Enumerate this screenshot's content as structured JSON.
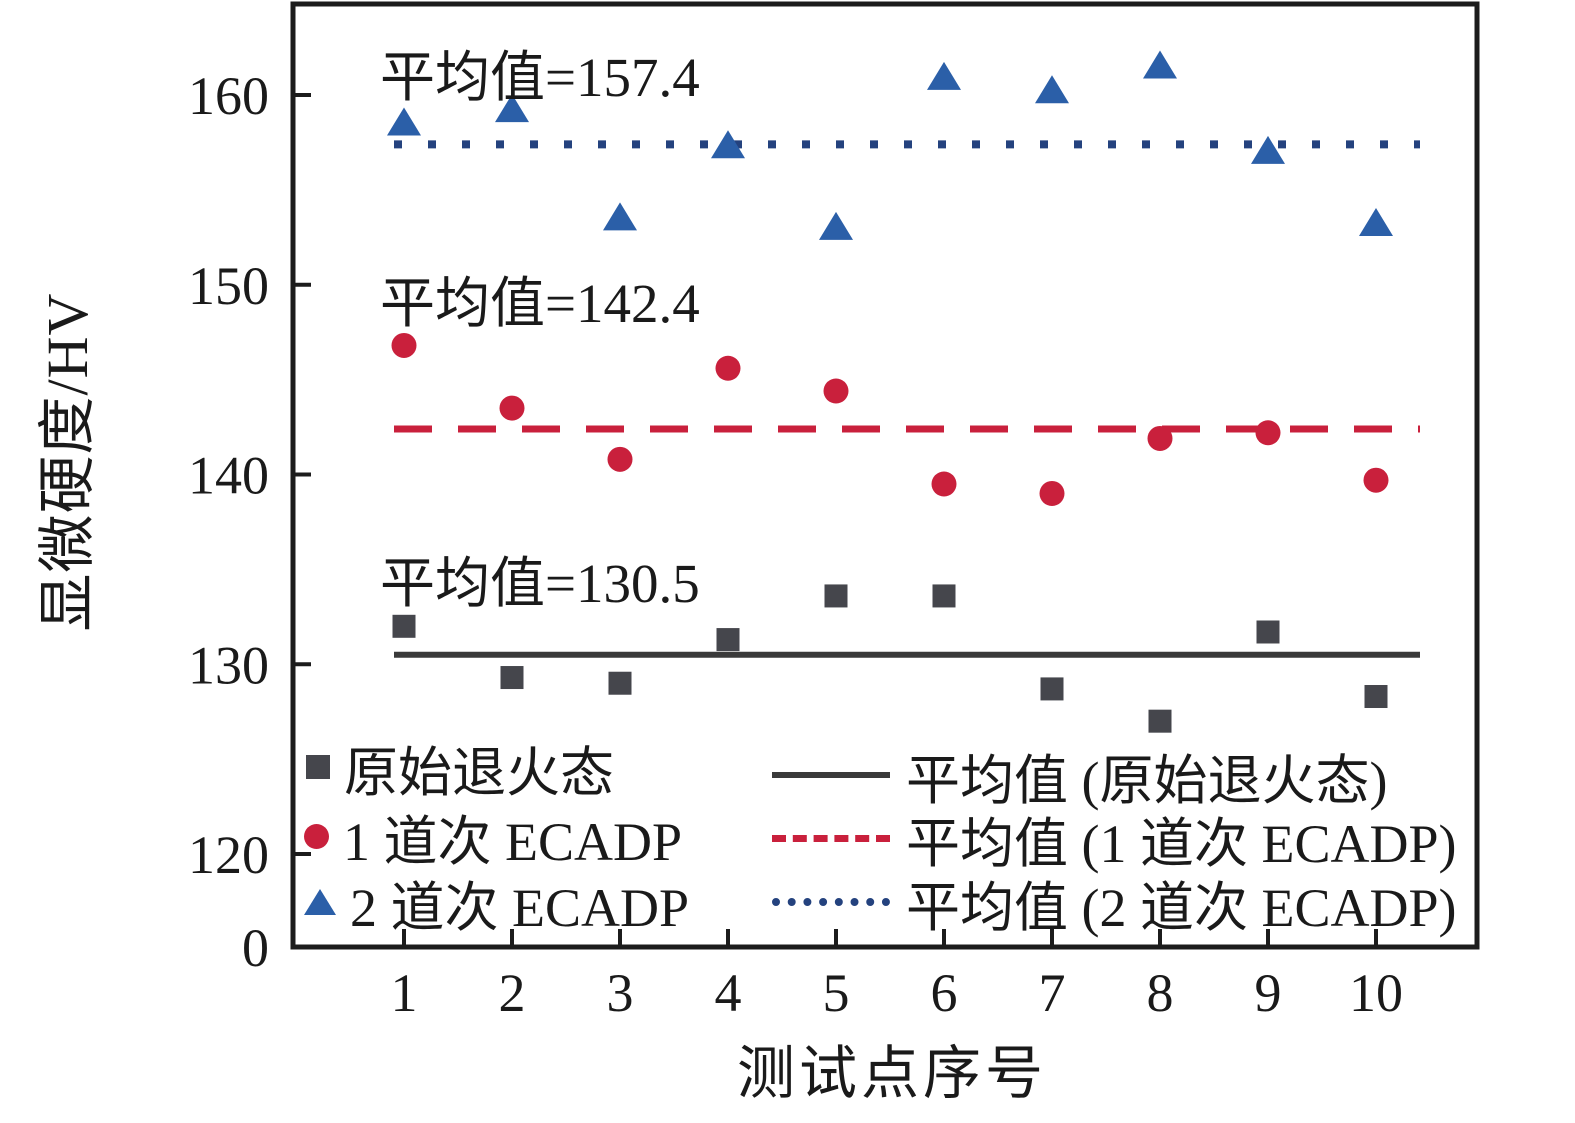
{
  "figure": {
    "background": "#ffffff",
    "axis_color": "#1c1c1c",
    "text_color": "#1a1a1a"
  },
  "axes": {
    "x_label": "测试点序号",
    "y_label": "显微硬度/HV",
    "x_ticks": [
      "1",
      "2",
      "3",
      "4",
      "5",
      "6",
      "7",
      "8",
      "9",
      "10"
    ],
    "y_ticks": [
      {
        "value": 0,
        "label": "0"
      },
      {
        "value": 120,
        "label": "120"
      },
      {
        "value": 130,
        "label": "130"
      },
      {
        "value": 140,
        "label": "140"
      },
      {
        "value": 150,
        "label": "150"
      },
      {
        "value": 160,
        "label": "160"
      }
    ]
  },
  "annotations": [
    {
      "text": "平均值=157.4"
    },
    {
      "text": "平均值=142.4"
    },
    {
      "text": "平均值=130.5"
    }
  ],
  "legend": {
    "markers": [
      {
        "label": "原始退火态",
        "marker": "square",
        "color": "#45464c"
      },
      {
        "label": "1 道次 ECADP",
        "marker": "circle",
        "color": "#c9203c"
      },
      {
        "label": "2 道次 ECADP",
        "marker": "triangle",
        "color": "#2b5fa8"
      }
    ],
    "lines": [
      {
        "label": "平均值 (原始退火态)",
        "style": "solid",
        "color": "#3a3a3a"
      },
      {
        "label": "平均值 (1 道次 ECADP)",
        "style": "dashed",
        "color": "#c9203c"
      },
      {
        "label": "平均值 (2 道次 ECADP)",
        "style": "dotted",
        "color": "#24427e"
      }
    ]
  },
  "chart_data": {
    "type": "scatter",
    "title": "",
    "xlabel": "测试点序号",
    "ylabel": "显微硬度/HV",
    "x": [
      1,
      2,
      3,
      4,
      5,
      6,
      7,
      8,
      9,
      10
    ],
    "series": [
      {
        "name": "原始退火态",
        "marker": "square",
        "color": "#45464c",
        "values": [
          132.0,
          129.3,
          129.0,
          131.3,
          133.6,
          133.6,
          128.7,
          127.0,
          131.7,
          128.3
        ],
        "mean": 130.5,
        "mean_line_style": "solid",
        "mean_line_color": "#3a3a3a"
      },
      {
        "name": "1 道次 ECADP",
        "marker": "circle",
        "color": "#c9203c",
        "values": [
          146.8,
          143.5,
          140.8,
          145.6,
          144.4,
          139.5,
          139.0,
          141.9,
          142.2,
          139.7
        ],
        "mean": 142.4,
        "mean_line_style": "dashed",
        "mean_line_color": "#c9203c"
      },
      {
        "name": "2 道次 ECADP",
        "marker": "triangle",
        "color": "#2b5fa8",
        "values": [
          158.5,
          159.2,
          153.5,
          157.3,
          153.0,
          160.9,
          160.2,
          161.5,
          157.0,
          153.2
        ],
        "mean": 157.4,
        "mean_line_style": "dotted",
        "mean_line_color": "#24427e"
      }
    ],
    "y_axis": {
      "ticks": [
        0,
        120,
        130,
        140,
        150,
        160
      ],
      "broken_below": 120,
      "linear_range": [
        120,
        163
      ]
    },
    "x_axis": {
      "range_points": [
        1,
        10
      ]
    },
    "grid": false,
    "legend_position": "inside-bottom"
  }
}
